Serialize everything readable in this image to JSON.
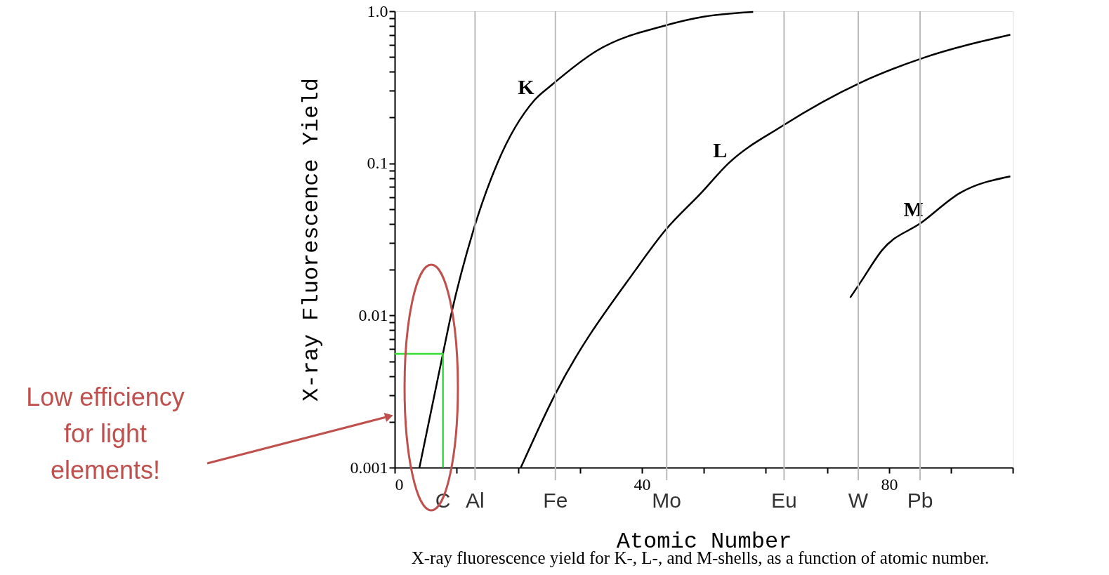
{
  "chart_data": {
    "type": "line",
    "xlabel": "Atomic Number",
    "ylabel": "X-ray Fluorescence Yield",
    "log": "y",
    "xlim": [
      0,
      100
    ],
    "ylim": [
      0.001,
      1
    ],
    "xticks": [
      0,
      {
        "value": 10,
        "label": null
      },
      {
        "value": 20,
        "label": null
      },
      {
        "value": 30,
        "label": null
      },
      40,
      {
        "value": 50,
        "label": null
      },
      {
        "value": 60,
        "label": null
      },
      {
        "value": 70,
        "label": null
      },
      80,
      {
        "value": 90,
        "label": null
      },
      {
        "value": 100,
        "label": null
      }
    ],
    "yticks": [
      {
        "value": 0.001,
        "label": "0.001"
      },
      {
        "value": 0.002,
        "label": null
      },
      {
        "value": 0.003,
        "label": null
      },
      {
        "value": 0.004,
        "label": null
      },
      {
        "value": 0.005,
        "label": null
      },
      {
        "value": 0.006,
        "label": null
      },
      {
        "value": 0.007,
        "label": null
      },
      {
        "value": 0.008,
        "label": null
      },
      {
        "value": 0.009,
        "label": null
      },
      {
        "value": 0.01,
        "label": "0.01"
      },
      {
        "value": 0.02,
        "label": null
      },
      {
        "value": 0.03,
        "label": null
      },
      {
        "value": 0.04,
        "label": null
      },
      {
        "value": 0.05,
        "label": null
      },
      {
        "value": 0.06,
        "label": null
      },
      {
        "value": 0.07,
        "label": null
      },
      {
        "value": 0.08,
        "label": null
      },
      {
        "value": 0.09,
        "label": null
      },
      {
        "value": 0.1,
        "label": "0.1"
      },
      {
        "value": 0.2,
        "label": null
      },
      {
        "value": 0.3,
        "label": null
      },
      {
        "value": 0.4,
        "label": null
      },
      {
        "value": 0.5,
        "label": null
      },
      {
        "value": 0.6,
        "label": null
      },
      {
        "value": 0.7,
        "label": null
      },
      {
        "value": 0.8,
        "label": null
      },
      {
        "value": 0.9,
        "label": null
      },
      {
        "value": 1,
        "label": "1.0"
      }
    ],
    "marker": "none",
    "series": [
      {
        "name": "K",
        "color": "#000000",
        "line_style": "solid",
        "x": [
          4,
          7.8,
          9.1,
          12.7,
          16.6,
          22.6,
          25.5,
          32.7,
          44,
          50,
          58
        ],
        "values": [
          0.001,
          0.0056,
          0.01,
          0.036,
          0.1,
          0.26,
          0.33,
          0.55,
          0.81,
          0.92,
          0.99
        ]
      },
      {
        "name": "L",
        "color": "#000000",
        "line_style": "solid",
        "x": [
          20.4,
          25.9,
          39,
          43.7,
          49.6,
          54,
          62.6,
          75.4,
          85.3,
          99.6
        ],
        "values": [
          0.001,
          0.003,
          0.02,
          0.036,
          0.064,
          0.1,
          0.175,
          0.34,
          0.49,
          0.7
        ]
      },
      {
        "name": "M",
        "color": "#000000",
        "line_style": "solid",
        "x": [
          73.7,
          75.4,
          78.9,
          85.3,
          91.5,
          99.6
        ],
        "values": [
          0.0131,
          0.0166,
          0.027,
          0.041,
          0.064,
          0.082
        ]
      },
      {
        "color": "#33dd33",
        "line_style": "solid",
        "x": [
          0,
          7.8,
          7.8
        ],
        "values": [
          0.0056,
          0.0056,
          0.001
        ]
      }
    ],
    "ref_lines": [
      {
        "axis": "x",
        "value": 13,
        "label": "Al",
        "color": "#bbbbbb"
      },
      {
        "axis": "x",
        "value": 26,
        "label": "Fe",
        "color": "#bbbbbb"
      },
      {
        "axis": "x",
        "value": 44,
        "label": "Mo",
        "color": "#bbbbbb"
      },
      {
        "axis": "x",
        "value": 63,
        "label": "Eu",
        "color": "#bbbbbb"
      },
      {
        "axis": "x",
        "value": 75,
        "label": "W",
        "color": "#bbbbbb"
      },
      {
        "axis": "x",
        "value": 85,
        "label": "Pb",
        "color": "#bbbbbb"
      }
    ],
    "annotations": [
      "Low efficiency for light elements!",
      {
        "text": "C",
        "x": 7.8,
        "y": 0.001
      },
      "X-ray fluorescence yield for K-, L-, and M-shells, as a function of atomic number."
    ]
  }
}
